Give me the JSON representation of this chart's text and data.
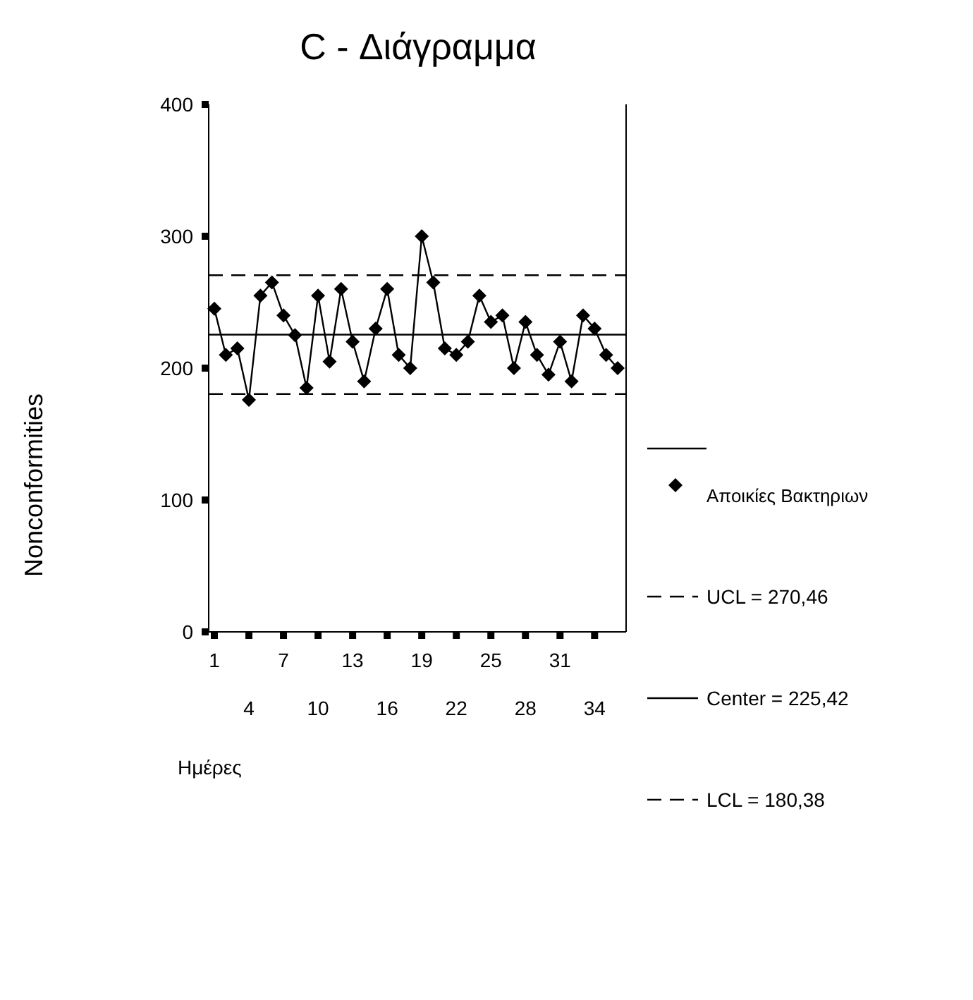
{
  "chart_data": {
    "type": "line",
    "title": "C - Διάγραμμα",
    "xlabel": "Ημέρες",
    "ylabel": "Nonconformities",
    "categories": [
      "1",
      null,
      null,
      "4",
      null,
      null,
      "7",
      null,
      null,
      "10",
      null,
      null,
      "13",
      null,
      null,
      "16",
      null,
      null,
      "19",
      null,
      null,
      "22",
      null,
      null,
      "25",
      null,
      null,
      "28",
      null,
      null,
      "31",
      null,
      null,
      "34",
      null,
      null
    ],
    "series": [
      {
        "name": "Αποικίες Βακτηριων",
        "color": "#000000",
        "values": [
          245,
          210,
          215,
          176,
          255,
          265,
          240,
          225,
          185,
          255,
          205,
          260,
          220,
          190,
          230,
          260,
          210,
          200,
          300,
          265,
          215,
          210,
          220,
          255,
          235,
          240,
          200,
          235,
          210,
          195,
          220,
          190,
          240,
          230,
          210,
          200
        ]
      }
    ],
    "ylim": [
      0,
      400
    ],
    "yticks": [
      0,
      100,
      200,
      300,
      400
    ],
    "grid": false,
    "legend": "right",
    "marker": "diamond",
    "line_style": "solid",
    "ref_lines": [
      {
        "axis": "y",
        "value": 270.46,
        "label": "UCL = 270,46",
        "line_style": "dashed",
        "color": "#000000"
      },
      {
        "axis": "y",
        "value": 225.42,
        "label": "Center = 225,42",
        "line_style": "solid",
        "color": "#000000"
      },
      {
        "axis": "y",
        "value": 180.38,
        "label": "LCL = 180,38",
        "line_style": "dashed",
        "color": "#000000"
      }
    ]
  }
}
